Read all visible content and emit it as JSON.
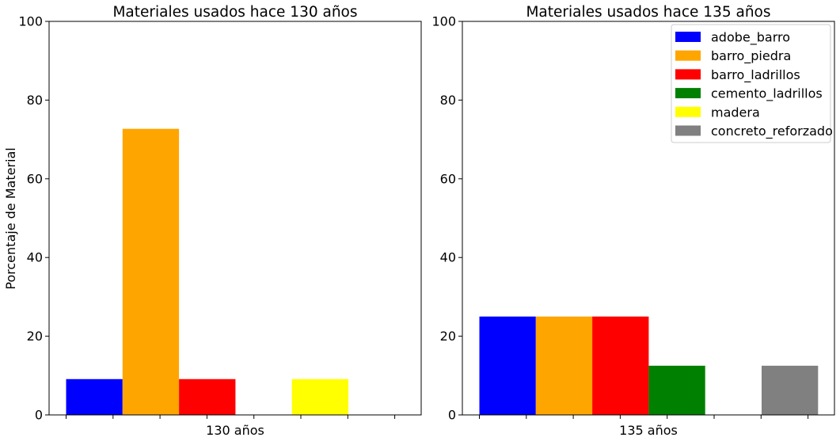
{
  "figure": {
    "ylabel": "Porcentaje de Material"
  },
  "chart_data": [
    {
      "type": "bar",
      "title": "Materiales usados hace 130 años",
      "xlabel": "130 años",
      "ylabel": "Porcentaje de Material",
      "ylim": [
        0,
        100
      ],
      "yticks": [
        0,
        20,
        40,
        60,
        80,
        100
      ],
      "grid": false,
      "legend": "none",
      "categories": [
        "adobe_barro",
        "barro_piedra",
        "barro_ladrillos",
        "cemento_ladrillos",
        "madera",
        "concreto_reforzado"
      ],
      "values": [
        9.1,
        72.7,
        9.1,
        0,
        9.1,
        0
      ]
    },
    {
      "type": "bar",
      "title": "Materiales usados hace  135 años",
      "xlabel": "135 años",
      "ylabel": "",
      "ylim": [
        0,
        100
      ],
      "yticks": [
        0,
        20,
        40,
        60,
        80,
        100
      ],
      "grid": false,
      "legend": "top-right",
      "categories": [
        "adobe_barro",
        "barro_piedra",
        "barro_ladrillos",
        "cemento_ladrillos",
        "madera",
        "concreto_reforzado"
      ],
      "values": [
        25,
        25,
        25,
        12.5,
        0,
        12.5
      ]
    }
  ],
  "legend": {
    "items": [
      {
        "label": "adobe_barro",
        "color": "#0000ff"
      },
      {
        "label": "barro_piedra",
        "color": "#ffa500"
      },
      {
        "label": "barro_ladrillos",
        "color": "#ff0000"
      },
      {
        "label": "cemento_ladrillos",
        "color": "#008000"
      },
      {
        "label": "madera",
        "color": "#ffff00"
      },
      {
        "label": "concreto_reforzado",
        "color": "#808080"
      }
    ]
  }
}
